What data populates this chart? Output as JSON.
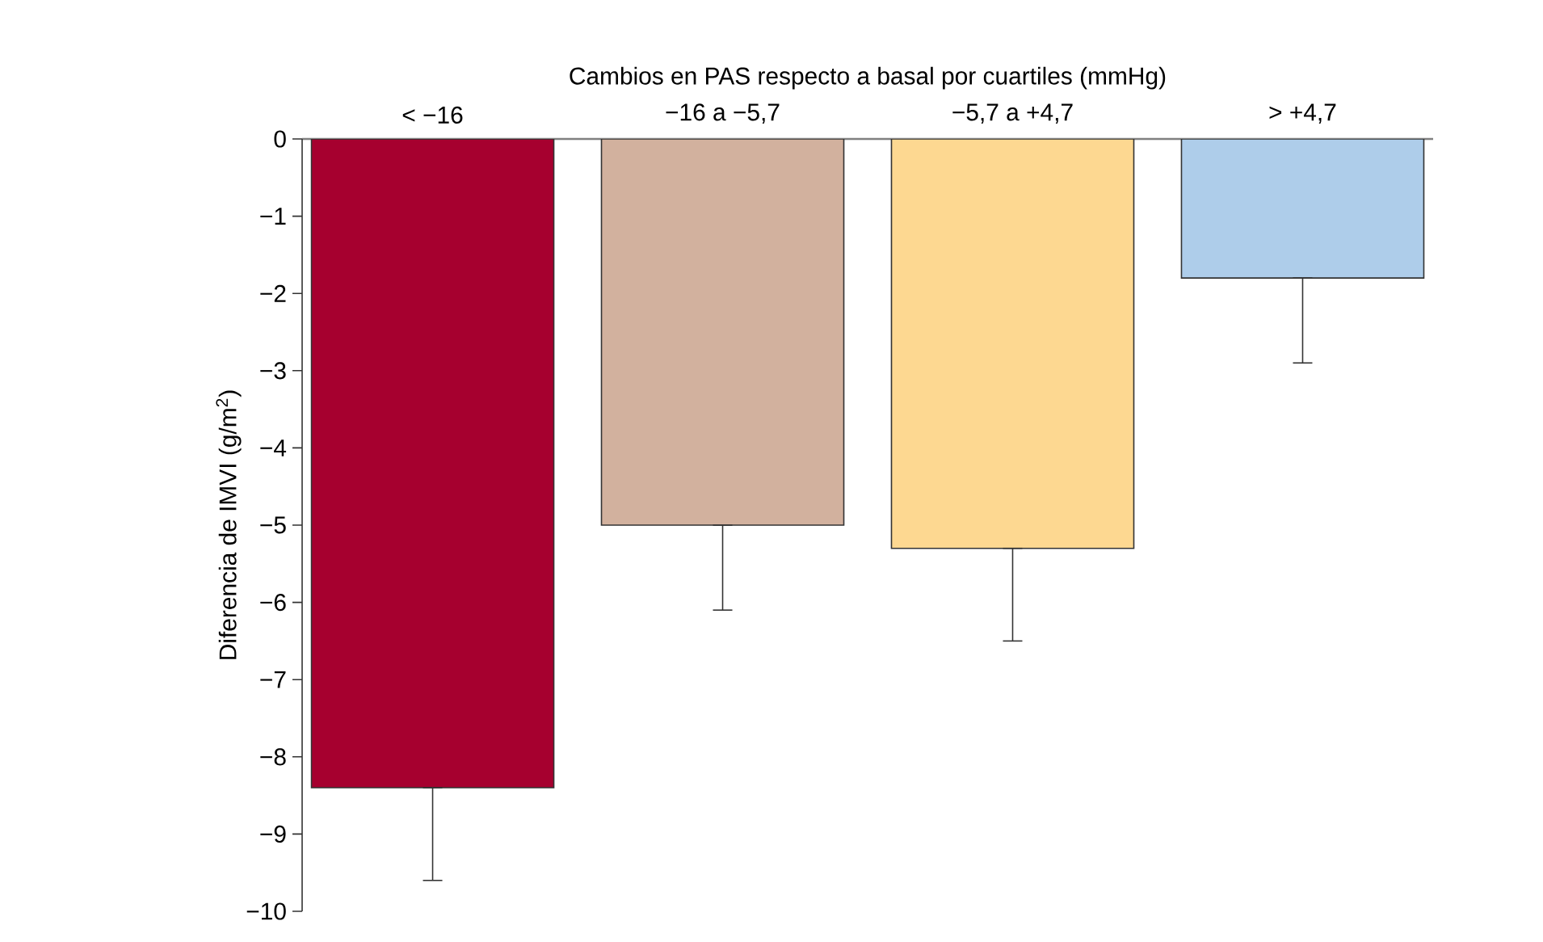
{
  "chart_data": {
    "type": "bar",
    "xlabel": "Cambios en PAS respecto a basal por cuartiles (mmHg)",
    "ylabel": "Diferencia de IMVI (g/m$^{2}$)",
    "categories": [
      "< −16",
      "−16 a −5,7",
      "−5,7 a +4,7",
      "> +4,7"
    ],
    "values": [
      -8.4,
      -5.0,
      -5.3,
      -1.8
    ],
    "colors": [
      "#a6002f",
      "#d2b19e",
      "#fdd891",
      "#aecdea"
    ],
    "errors": [
      [
        -9.6,
        -8.4
      ],
      [
        -6.1,
        -5.0
      ],
      [
        -6.5,
        -5.3
      ],
      [
        -2.9,
        -1.8
      ]
    ],
    "ylim": [
      -10,
      0
    ],
    "yticks": [
      {
        "value": -10,
        "label": "−10"
      },
      {
        "value": -9,
        "label": "−9"
      },
      {
        "value": -8,
        "label": "−8"
      },
      {
        "value": -7,
        "label": "−7"
      },
      {
        "value": -6,
        "label": "−6"
      },
      {
        "value": -5,
        "label": "−5"
      },
      {
        "value": -4,
        "label": "−4"
      },
      {
        "value": -3,
        "label": "−3"
      },
      {
        "value": -2,
        "label": "−2"
      },
      {
        "value": -1,
        "label": "−1"
      },
      0
    ],
    "grid": false
  }
}
